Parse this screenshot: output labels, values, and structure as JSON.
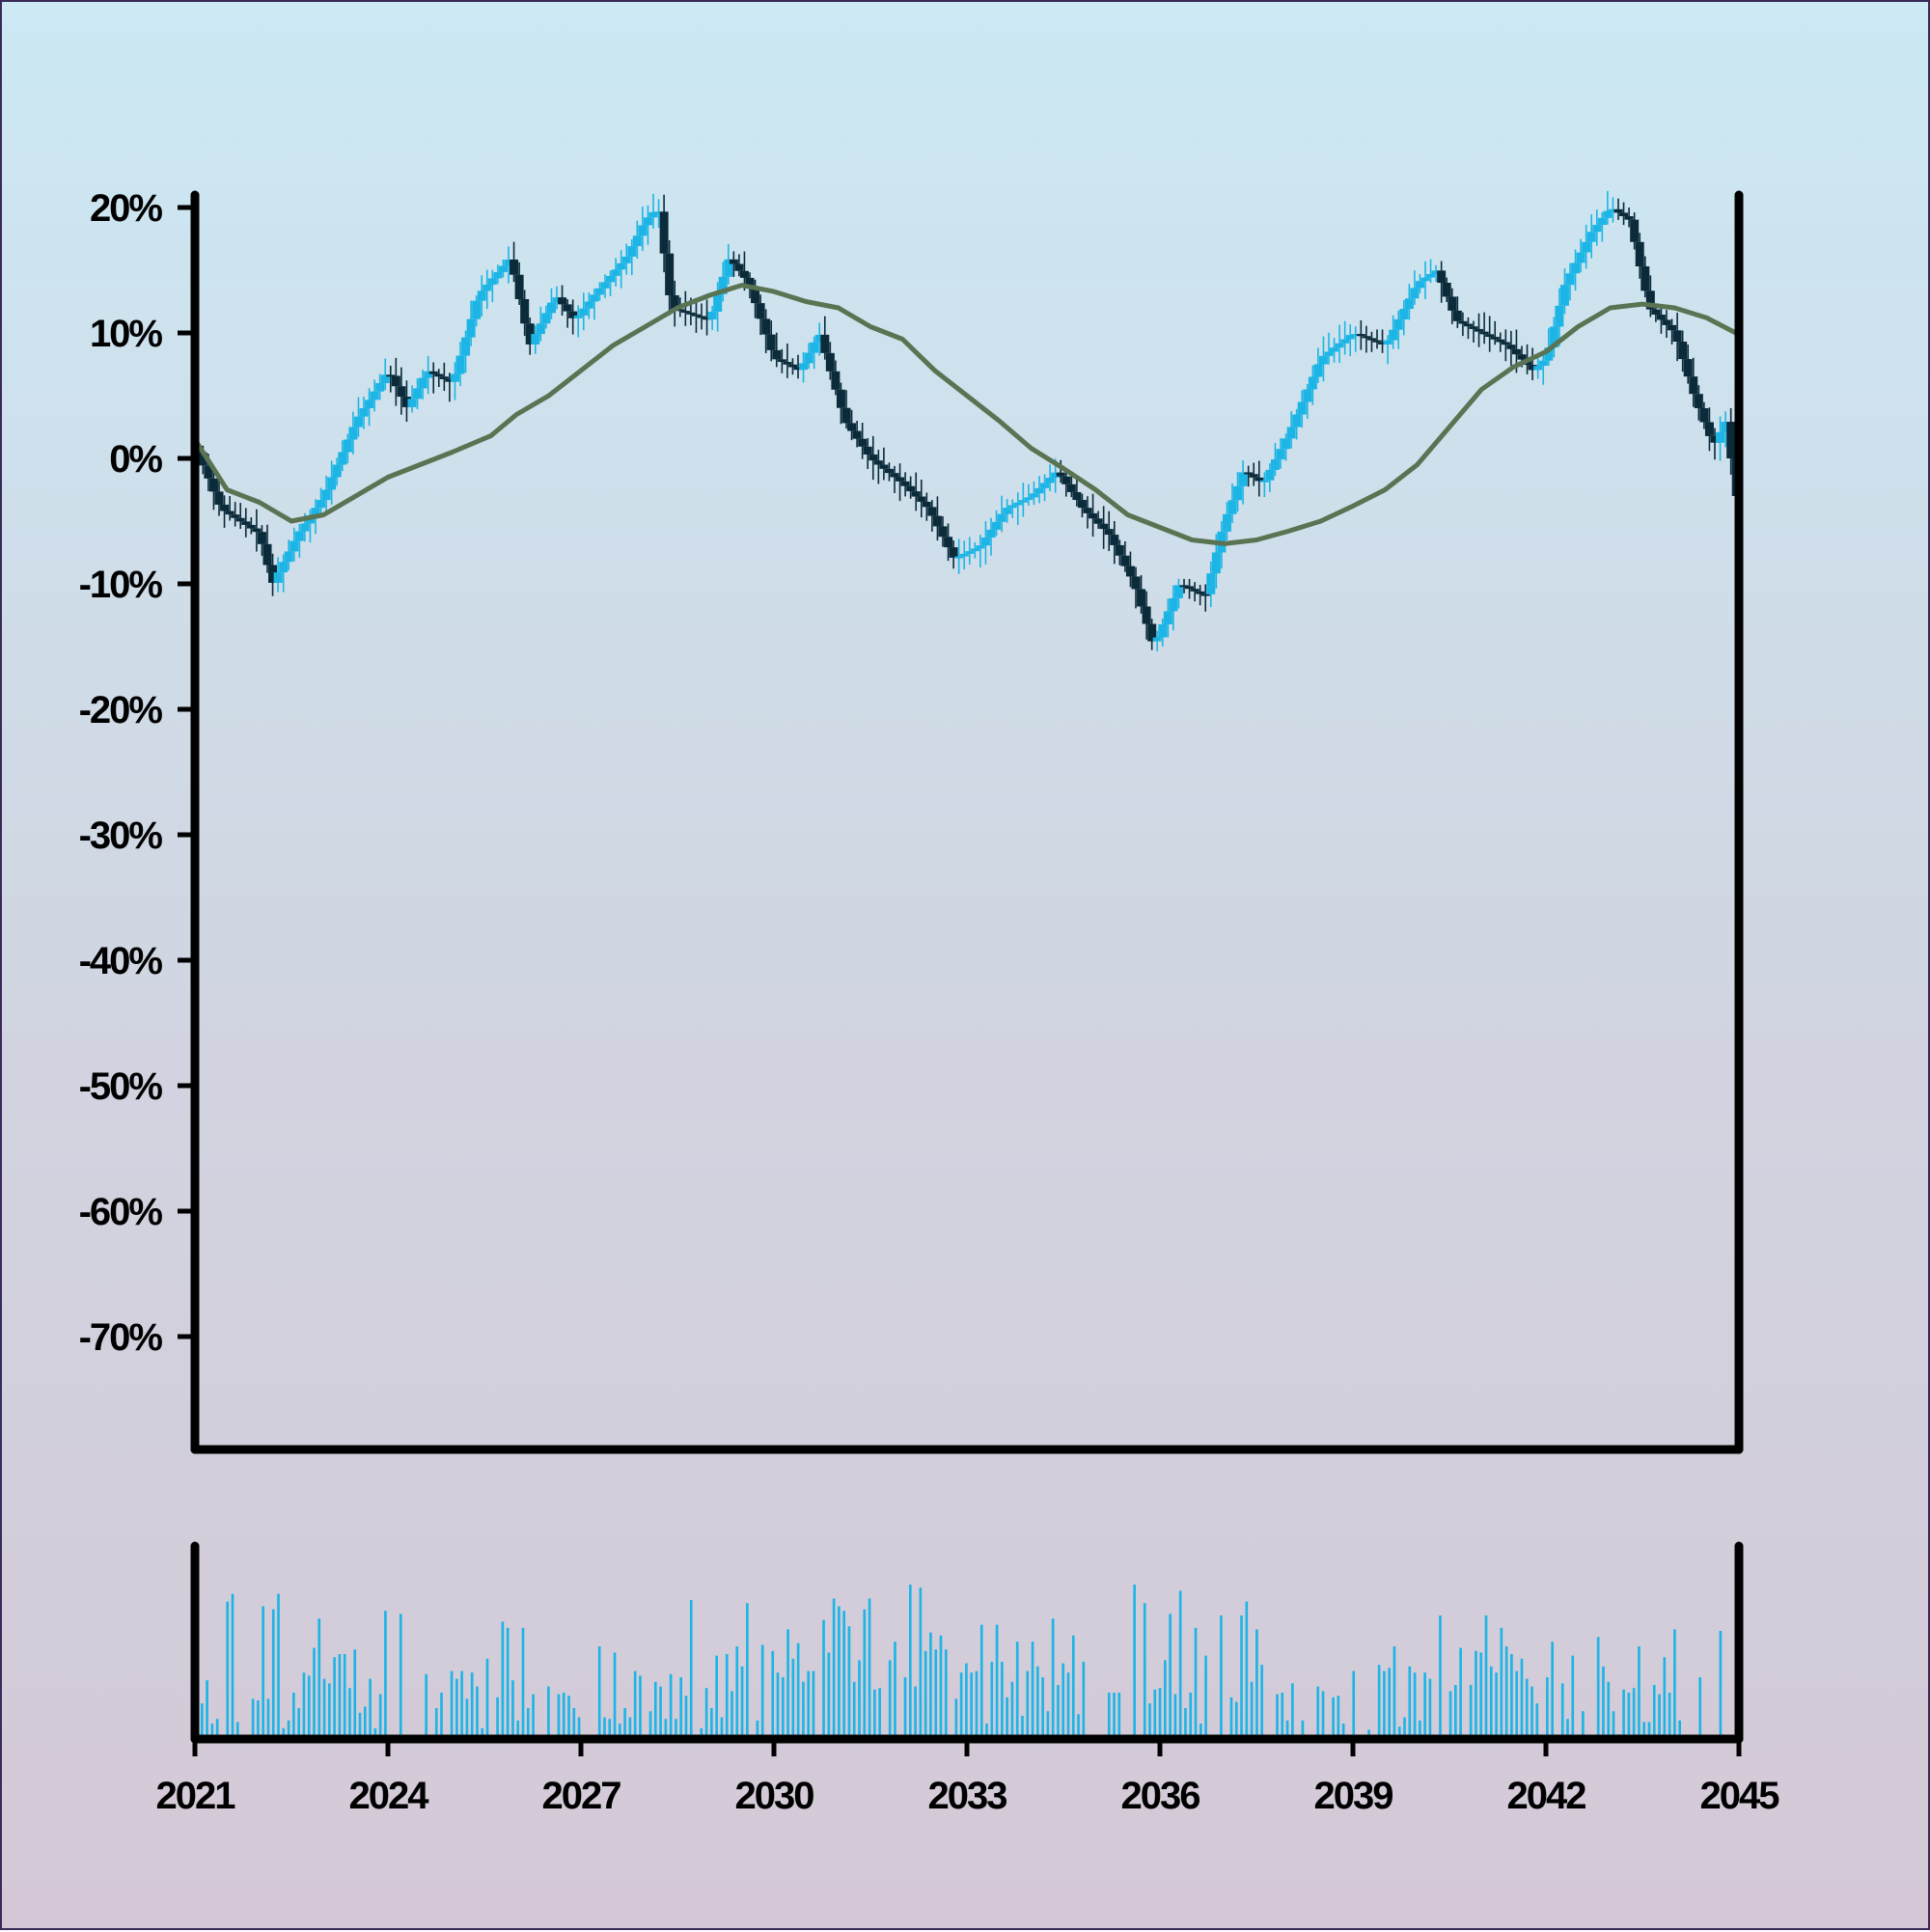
{
  "colors": {
    "up": "#1cb5e5",
    "down": "#0b2a3a",
    "ma": "#5a7352",
    "volume": "#1cb5e5",
    "axis": "#000000"
  },
  "chart_data": {
    "type": "candlestick",
    "title": "",
    "xlabel": "",
    "ylabel": "",
    "xlim": [
      2021,
      2045
    ],
    "ylim": [
      -79,
      21
    ],
    "x_ticks": [
      "2021",
      "2024",
      "2027",
      "2030",
      "2033",
      "2036",
      "2039",
      "2042",
      "2045"
    ],
    "y_ticks": [
      "20%",
      "10%",
      "0%",
      "-10%",
      "-20%",
      "-30%",
      "-40%",
      "-50%",
      "-60%",
      "-70%"
    ],
    "grid": false,
    "close_anchors": {
      "x": [
        2021.0,
        2021.4,
        2022.0,
        2022.2,
        2022.6,
        2023.0,
        2023.5,
        2024.0,
        2024.3,
        2024.6,
        2025.0,
        2025.4,
        2025.9,
        2026.2,
        2026.6,
        2026.9,
        2027.2,
        2027.7,
        2028.0,
        2028.2,
        2028.4,
        2029.0,
        2029.3,
        2029.6,
        2030.0,
        2030.4,
        2030.7,
        2031.1,
        2031.5,
        2032.0,
        2032.4,
        2032.8,
        2033.2,
        2033.6,
        2034.0,
        2034.4,
        2034.8,
        2035.2,
        2035.6,
        2035.9,
        2036.3,
        2036.7,
        2037.0,
        2037.3,
        2037.6,
        2038.0,
        2038.5,
        2039.0,
        2039.5,
        2040.0,
        2040.3,
        2040.6,
        2041.0,
        2041.4,
        2041.8,
        2042.0,
        2042.3,
        2042.7,
        2043.0,
        2043.3,
        2043.6,
        2044.0,
        2044.3,
        2044.6,
        2044.8,
        2044.95
      ],
      "y": [
        1,
        -4,
        -6,
        -10,
        -6,
        -3,
        3,
        7,
        4,
        7,
        6,
        13,
        16,
        9,
        13,
        11,
        13,
        16,
        19,
        20,
        12,
        11,
        16,
        14,
        8,
        7,
        10,
        3,
        0,
        -2,
        -4,
        -8,
        -7,
        -4,
        -3,
        -1,
        -4,
        -6,
        -10,
        -15,
        -10,
        -11,
        -5,
        -1,
        -2,
        2,
        8,
        10,
        9,
        14,
        15,
        11,
        10,
        9,
        7,
        8,
        14,
        18,
        20,
        19,
        12,
        10,
        5,
        1,
        3,
        -3
      ],
      "note": "close values in %, one candle every ~0.083 years"
    },
    "moving_average": {
      "x": [
        2021.0,
        2021.5,
        2022.0,
        2022.5,
        2023.0,
        2024.0,
        2025.0,
        2025.6,
        2026.0,
        2026.5,
        2027.0,
        2027.5,
        2028.0,
        2028.5,
        2029.0,
        2029.5,
        2030.0,
        2030.5,
        2031.0,
        2031.5,
        2032.0,
        2032.5,
        2033.0,
        2033.5,
        2034.0,
        2034.5,
        2035.0,
        2035.5,
        2036.0,
        2036.5,
        2037.0,
        2037.5,
        2038.0,
        2038.5,
        2039.0,
        2039.5,
        2040.0,
        2040.5,
        2041.0,
        2041.5,
        2042.0,
        2042.5,
        2043.0,
        2043.5,
        2044.0,
        2044.5,
        2044.95
      ],
      "y": [
        1.5,
        -2.5,
        -3.5,
        -5.0,
        -4.5,
        -1.5,
        0.5,
        1.8,
        3.5,
        5.0,
        7.0,
        9.0,
        10.5,
        12.0,
        13.0,
        13.8,
        13.3,
        12.5,
        12.0,
        10.5,
        9.5,
        7.0,
        5.0,
        3.0,
        0.8,
        -0.8,
        -2.5,
        -4.5,
        -5.5,
        -6.5,
        -6.8,
        -6.5,
        -5.8,
        -5.0,
        -3.8,
        -2.5,
        -0.5,
        2.5,
        5.5,
        7.3,
        8.5,
        10.5,
        12.0,
        12.3,
        12.0,
        11.2,
        10.0
      ]
    },
    "volume": {
      "note": "relative volume, one bar per candle, scale 0-1",
      "values": [
        0.23,
        0.38,
        0.1,
        0.13,
        0.0,
        0.89,
        0.94,
        0.11,
        0.0,
        0.0,
        0.26,
        0.25,
        0.86,
        0.26,
        0.84,
        0.94,
        0.07,
        0.12,
        0.3,
        0.2,
        0.43,
        0.41,
        0.59,
        0.78,
        0.39,
        0.36,
        0.53,
        0.55,
        0.55,
        0.33,
        0.58,
        0.17,
        0.21,
        0.39,
        0.07,
        0.29,
        0.83,
        0.0,
        0.0,
        0.81,
        0.01,
        0.0,
        0.0,
        0.02,
        0.42,
        0.0,
        0.2,
        0.3,
        0.0,
        0.44,
        0.39,
        0.44,
        0.26,
        0.43,
        0.34,
        0.07,
        0.52,
        0.0,
        0.27,
        0.76,
        0.72,
        0.38,
        0.12,
        0.72,
        0.2,
        0.29,
        0.0,
        0.0,
        0.34,
        0.0,
        0.29,
        0.3,
        0.28,
        0.2,
        0.14,
        0.0,
        0.0,
        0.0,
        0.6,
        0.14,
        0.13,
        0.56,
        0.1,
        0.2,
        0.14,
        0.44,
        0.41,
        0.0,
        0.18,
        0.37,
        0.34,
        0.13,
        0.42,
        0.13,
        0.4,
        0.28,
        0.9,
        0.0,
        0.07,
        0.33,
        0.2,
        0.54,
        0.14,
        0.55,
        0.31,
        0.6,
        0.47,
        0.88,
        0.0,
        0.12,
        0.61,
        0.0,
        0.57,
        0.43,
        0.4,
        0.71,
        0.52,
        0.62,
        0.37,
        0.44,
        0.44,
        0.0,
        0.77,
        0.56,
        0.91,
        0.86,
        0.83,
        0.73,
        0.37,
        0.51,
        0.84,
        0.91,
        0.32,
        0.33,
        0.0,
        0.51,
        0.63,
        0.02,
        0.4,
        1.0,
        0.34,
        0.98,
        0.57,
        0.69,
        0.58,
        0.67,
        0.58,
        0.0,
        0.26,
        0.43,
        0.49,
        0.43,
        0.44,
        0.74,
        0.1,
        0.5,
        0.74,
        0.5,
        0.27,
        0.37,
        0.63,
        0.15,
        0.44,
        0.63,
        0.47,
        0.4,
        0.18,
        0.78,
        0.35,
        0.49,
        0.43,
        0.67,
        0.16,
        0.5,
        0.01,
        0.01,
        0.0,
        0.0,
        0.3,
        0.3,
        0.3,
        0.0,
        0.0,
        1.0,
        0.0,
        0.88,
        0.23,
        0.32,
        0.33,
        0.51,
        0.81,
        0.29,
        0.96,
        0.2,
        0.3,
        0.72,
        0.1,
        0.54,
        0.0,
        0.0,
        0.8,
        0.01,
        0.27,
        0.24,
        0.8,
        0.89,
        0.37,
        0.71,
        0.48,
        0.0,
        0.02,
        0.29,
        0.3,
        0.12,
        0.36,
        0.0,
        0.12,
        0.0,
        0.0,
        0.34,
        0.31,
        0.0,
        0.27,
        0.28,
        0.1,
        0.0,
        0.44,
        0.0,
        0.0,
        0.06,
        0.0,
        0.48,
        0.44,
        0.46,
        0.6,
        0.08,
        0.14,
        0.47,
        0.43,
        0.12,
        0.43,
        0.39,
        0.0,
        0.8,
        0.0,
        0.31,
        0.35,
        0.59,
        0.0,
        0.35,
        0.57,
        0.56,
        0.8,
        0.47,
        0.43,
        0.72,
        0.6,
        0.55,
        0.44,
        0.52,
        0.39,
        0.34,
        0.23,
        0.0,
        0.4,
        0.63,
        0.01,
        0.36,
        0.13,
        0.54,
        0.0,
        0.18,
        0.0,
        0.0,
        0.66,
        0.47,
        0.37,
        0.18,
        0.03,
        0.32,
        0.3,
        0.33,
        0.6,
        0.11,
        0.11,
        0.35,
        0.29,
        0.53,
        0.3,
        0.71,
        0.12,
        0.0,
        0.0,
        0.0,
        0.4,
        0.0,
        0.0,
        0.0,
        0.7,
        0.0,
        0.0,
        0.0,
        0.12
      ]
    }
  }
}
